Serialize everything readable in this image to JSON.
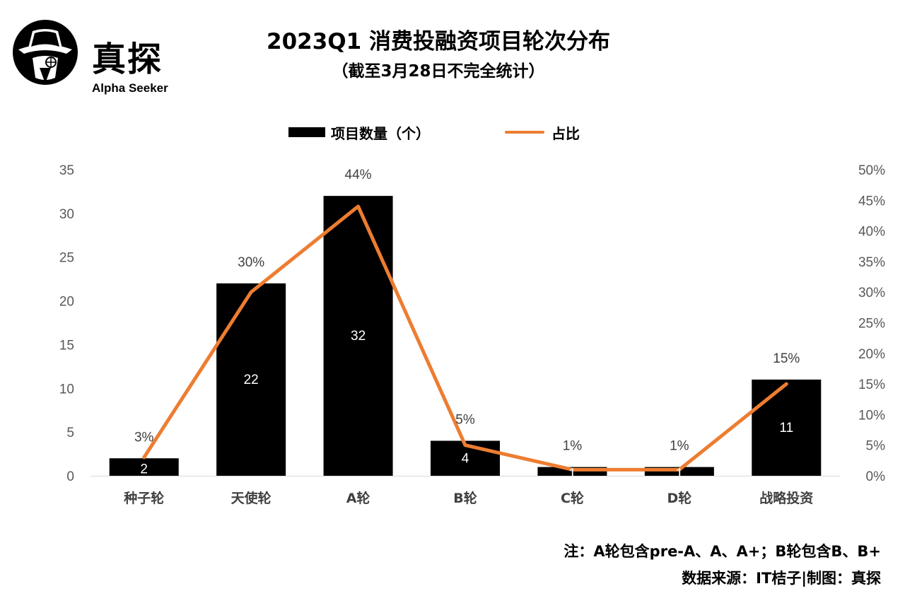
{
  "header": {
    "logo_title": "真探",
    "logo_subtitle": "Alpha Seeker",
    "title": "2023Q1 消费投融资项目轮次分布",
    "subtitle": "（截至3月28日不完全统计）"
  },
  "legend": {
    "bar_label": "项目数量（个）",
    "line_label": "占比"
  },
  "chart_data": {
    "type": "bar",
    "categories": [
      "种子轮",
      "天使轮",
      "A轮",
      "B轮",
      "C轮",
      "D轮",
      "战略投资"
    ],
    "series": [
      {
        "name": "项目数量（个）",
        "type": "bar",
        "axis": "left",
        "color": "#000000",
        "values": [
          2,
          22,
          32,
          4,
          1,
          1,
          11
        ]
      },
      {
        "name": "占比",
        "type": "line",
        "axis": "right",
        "color": "#ED7D31",
        "values": [
          3,
          30,
          44,
          5,
          1,
          1,
          15
        ],
        "labels": [
          "3%",
          "30%",
          "44%",
          "5%",
          "1%",
          "1%",
          "15%"
        ]
      }
    ],
    "ylim": [
      0,
      35
    ],
    "yticks": [
      "0",
      "5",
      "10",
      "15",
      "20",
      "25",
      "30",
      "35"
    ],
    "y2lim": [
      0,
      50
    ],
    "y2ticks": [
      "0%",
      "5%",
      "10%",
      "15%",
      "20%",
      "25%",
      "30%",
      "35%",
      "40%",
      "45%",
      "50%"
    ],
    "grid": false,
    "legend_position": "top"
  },
  "notes": {
    "note1": "注：A轮包含pre-A、A、A+；B轮包含B、B+",
    "note2": "数据来源：IT桔子|制图：真探"
  }
}
